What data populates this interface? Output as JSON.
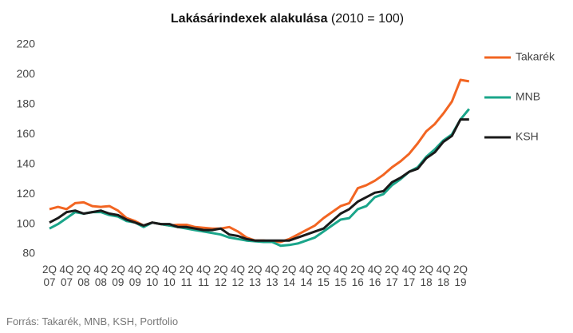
{
  "chart_data": {
    "type": "line",
    "title": "Lakásárindexek alakulása",
    "subtitle": "(2010 = 100)",
    "source": "Forrás: Takarék, MNB, KSH, Portfolio",
    "categories": [
      "2Q 07",
      null,
      "4Q 07",
      null,
      "2Q 08",
      null,
      "4Q 08",
      null,
      "2Q 09",
      null,
      "4Q 09",
      null,
      "2Q 10",
      null,
      "4Q 10",
      null,
      "2Q 11",
      null,
      "4Q 11",
      null,
      "2Q 12",
      null,
      "4Q 12",
      null,
      "2Q 13",
      null,
      "4Q 13",
      null,
      "2Q 14",
      null,
      "4Q 14",
      null,
      "2Q 15",
      null,
      "4Q 15",
      null,
      "2Q 16",
      null,
      "4Q 16",
      null,
      "2Q 17",
      null,
      "4Q 17",
      null,
      "2Q 18",
      null,
      "4Q 18",
      null,
      "2Q 19",
      null
    ],
    "series": [
      {
        "name": "Takarék",
        "color": "#f26522",
        "values": [
          110,
          111.5,
          110,
          114,
          114.5,
          112,
          111.5,
          112,
          109,
          104,
          102,
          99,
          101,
          100,
          99,
          99.5,
          99.5,
          98,
          97.5,
          97,
          97,
          98,
          95,
          91,
          89,
          89,
          88.5,
          88,
          90,
          93,
          96,
          99,
          104,
          108,
          112,
          114,
          124,
          126,
          129,
          133,
          138,
          142,
          147,
          154,
          162,
          167,
          174,
          182,
          196.5,
          195.5
        ]
      },
      {
        "name": "MNB",
        "color": "#1aa58a",
        "values": [
          97,
          100,
          104,
          108,
          107,
          108,
          108,
          106,
          105,
          102,
          101,
          98,
          101,
          100,
          99,
          98,
          97,
          96,
          95,
          94,
          93,
          91,
          90,
          89,
          88.5,
          88,
          88,
          85.5,
          86,
          87,
          89,
          91,
          95,
          99,
          103,
          104,
          110,
          112,
          118,
          120,
          126,
          130,
          135,
          138,
          145,
          150,
          156,
          160,
          170,
          177
        ]
      },
      {
        "name": "KSH",
        "color": "#1a1a1a",
        "values": [
          101,
          104,
          108,
          109,
          107,
          108,
          109,
          107,
          106,
          103,
          101,
          99,
          101,
          100,
          100,
          98,
          98,
          97,
          96,
          96,
          97,
          93,
          92,
          90,
          89,
          89,
          89,
          89,
          89,
          91,
          93,
          95,
          97,
          102,
          107,
          110,
          115,
          118,
          121,
          122,
          128,
          131,
          135,
          137,
          144,
          148,
          155,
          159,
          170,
          170
        ]
      }
    ],
    "ylim": [
      80,
      220
    ],
    "yticks": [
      80,
      100,
      120,
      140,
      160,
      180,
      200,
      220
    ],
    "grid": false,
    "legend": "right"
  }
}
